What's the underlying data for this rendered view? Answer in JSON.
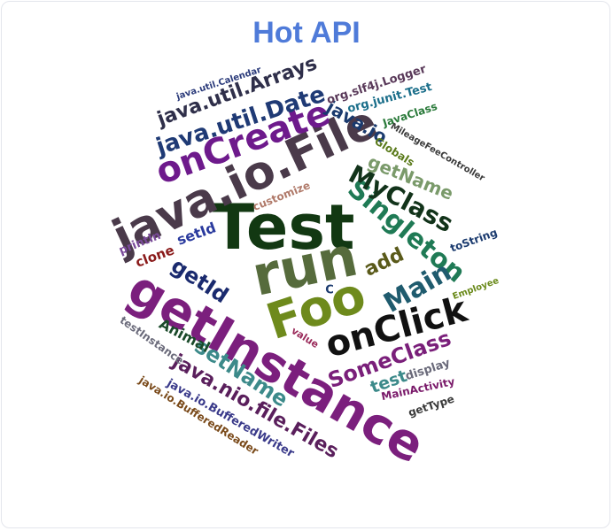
{
  "chart_data": {
    "type": "wordcloud",
    "title": "Hot API",
    "words": [
      {
        "text": "Test",
        "weight": 100,
        "color": "#123812"
      },
      {
        "text": "run",
        "weight": 95,
        "color": "#566b3c"
      },
      {
        "text": "getInstance",
        "weight": 90,
        "color": "#7b1f7d"
      },
      {
        "text": "Foo",
        "weight": 82,
        "color": "#6e8a1c"
      },
      {
        "text": "java.io.File",
        "weight": 78,
        "color": "#4a3a4a"
      },
      {
        "text": "onClick",
        "weight": 62,
        "color": "#111111"
      },
      {
        "text": "onCreate",
        "weight": 60,
        "color": "#6e1a8c"
      },
      {
        "text": "Singleton",
        "weight": 48,
        "color": "#1f7a55"
      },
      {
        "text": "Main",
        "weight": 46,
        "color": "#1f5b6e"
      },
      {
        "text": "MyClass",
        "weight": 44,
        "color": "#12331a"
      },
      {
        "text": "java.util.Date",
        "weight": 42,
        "color": "#1f3a75"
      },
      {
        "text": "java.nio.file.Files",
        "weight": 38,
        "color": "#5a1f5c"
      },
      {
        "text": "SomeClass",
        "weight": 38,
        "color": "#7a1f7a"
      },
      {
        "text": "setName",
        "weight": 36,
        "color": "#3c8a8a"
      },
      {
        "text": "getId",
        "weight": 36,
        "color": "#1a2a6e"
      },
      {
        "text": "java.util.Arrays",
        "weight": 34,
        "color": "#2f2f4a"
      },
      {
        "text": "getName",
        "weight": 32,
        "color": "#7a9a6a"
      },
      {
        "text": "add",
        "weight": 32,
        "color": "#5a5a1a"
      },
      {
        "text": "java.io",
        "weight": 30,
        "color": "#1a3a6e"
      },
      {
        "text": "test",
        "weight": 28,
        "color": "#3c8a8a"
      },
      {
        "text": "Animal",
        "weight": 26,
        "color": "#1a4a2a"
      },
      {
        "text": "setId",
        "weight": 26,
        "color": "#2a3a9e"
      },
      {
        "text": "clone",
        "weight": 24,
        "color": "#8a1a1a"
      },
      {
        "text": "java.io.BufferedWriter",
        "weight": 20,
        "color": "#3a3a8a"
      },
      {
        "text": "org.slf4j.Logger",
        "weight": 20,
        "color": "#5a3a5a"
      },
      {
        "text": "println",
        "weight": 20,
        "color": "#7a4a9a"
      },
      {
        "text": "org.junit.Test",
        "weight": 20,
        "color": "#1a6e8a"
      },
      {
        "text": "java.io.BufferedReader",
        "weight": 18,
        "color": "#7a4a1a"
      },
      {
        "text": "testInstance",
        "weight": 18,
        "color": "#6a6a7a"
      },
      {
        "text": "display",
        "weight": 18,
        "color": "#6a6a7a"
      },
      {
        "text": "customize",
        "weight": 18,
        "color": "#b07a6a"
      },
      {
        "text": "MainActivity",
        "weight": 18,
        "color": "#7a1a6a"
      },
      {
        "text": "JavaClass",
        "weight": 18,
        "color": "#2a7a3a"
      },
      {
        "text": "Globals",
        "weight": 18,
        "color": "#5a7a1a"
      },
      {
        "text": "getType",
        "weight": 17,
        "color": "#3a3a3a"
      },
      {
        "text": "toString",
        "weight": 17,
        "color": "#1a3a6e"
      },
      {
        "text": "value",
        "weight": 16,
        "color": "#9a2a5a"
      },
      {
        "text": "C",
        "weight": 16,
        "color": "#1a3a6e"
      },
      {
        "text": "MileageFeeController",
        "weight": 14,
        "color": "#3a3a3a"
      },
      {
        "text": "Employee",
        "weight": 14,
        "color": "#6a8a1a"
      },
      {
        "text": "java.util.Calendar",
        "weight": 14,
        "color": "#2a3a7a"
      }
    ]
  }
}
